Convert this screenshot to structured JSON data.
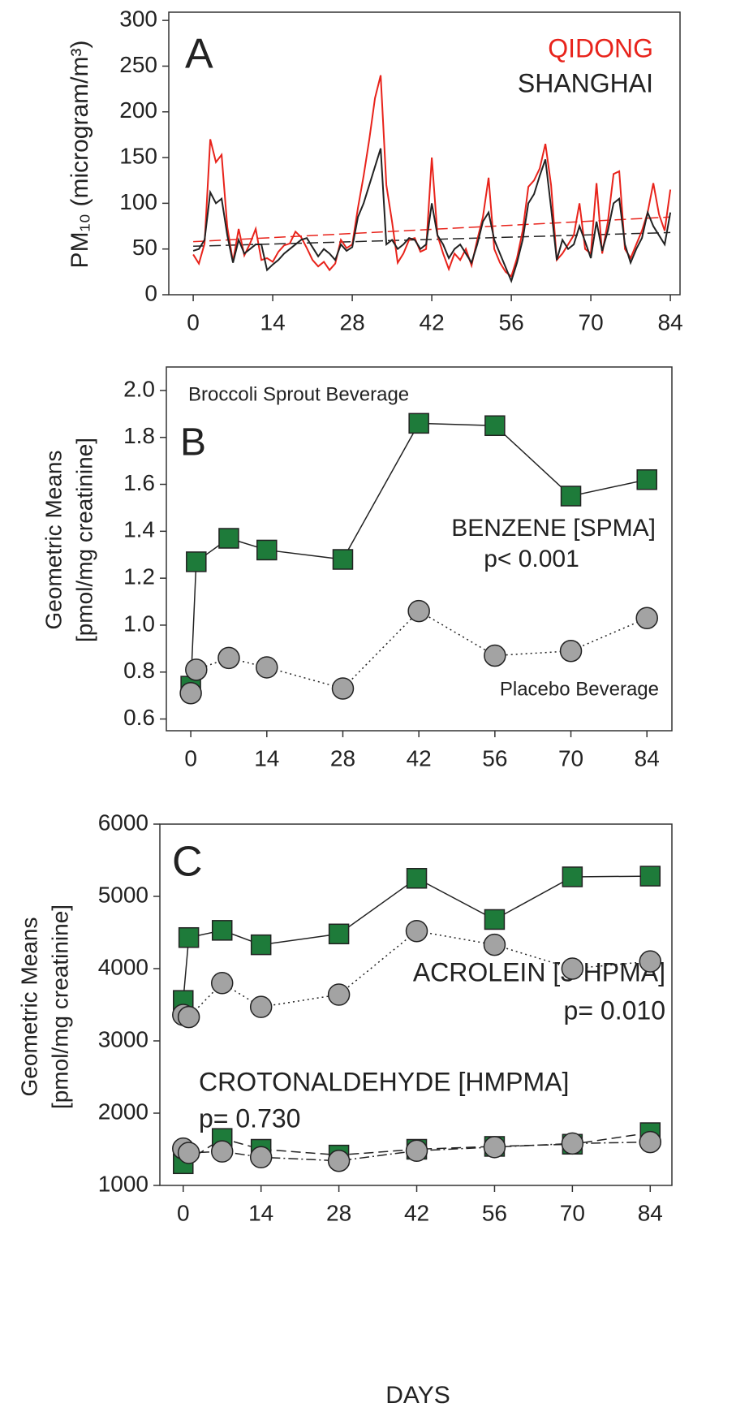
{
  "chart_data": [
    {
      "type": "line",
      "panel_label": "A",
      "ylabel": "PM₁₀ (microgram/m³)",
      "xlim": [
        -4.3,
        85.7
      ],
      "ylim": [
        0,
        309
      ],
      "xticks": [
        0,
        14,
        28,
        42,
        56,
        70,
        84
      ],
      "yticks": [
        0,
        50,
        100,
        150,
        200,
        250,
        300
      ],
      "series": [
        {
          "name": "QIDONG",
          "color": "#e8231b",
          "line": "solid",
          "x": [
            0,
            1,
            2,
            3,
            4,
            5,
            6,
            7,
            8,
            9,
            10,
            11,
            12,
            13,
            14,
            15,
            16,
            17,
            18,
            19,
            20,
            21,
            22,
            23,
            24,
            25,
            26,
            27,
            28,
            29,
            30,
            31,
            32,
            33,
            34,
            35,
            36,
            37,
            38,
            39,
            40,
            41,
            42,
            43,
            44,
            45,
            46,
            47,
            48,
            49,
            50,
            51,
            52,
            53,
            54,
            55,
            56,
            57,
            58,
            59,
            60,
            61,
            62,
            63,
            64,
            65,
            66,
            67,
            68,
            69,
            70,
            71,
            72,
            73,
            74,
            75,
            76,
            77,
            78,
            79,
            80,
            81,
            82,
            83,
            84
          ],
          "values": [
            44,
            34,
            56,
            170,
            145,
            153,
            74,
            36,
            72,
            43,
            56,
            72,
            38,
            40,
            36,
            47,
            54,
            56,
            69,
            63,
            51,
            38,
            31,
            36,
            27,
            34,
            60,
            51,
            55,
            95,
            130,
            170,
            215,
            240,
            120,
            80,
            35,
            45,
            60,
            62,
            47,
            50,
            150,
            65,
            45,
            28,
            45,
            38,
            50,
            32,
            60,
            85,
            128,
            50,
            35,
            25,
            20,
            40,
            70,
            118,
            125,
            138,
            165,
            120,
            38,
            45,
            55,
            65,
            100,
            50,
            45,
            122,
            45,
            80,
            132,
            135,
            50,
            40,
            55,
            70,
            90,
            122,
            88,
            70,
            115
          ],
          "trend": {
            "x": [
              0,
              84
            ],
            "values": [
              58,
              85
            ]
          }
        },
        {
          "name": "SHANGHAI",
          "color": "#222222",
          "line": "solid",
          "x": [
            0,
            1,
            2,
            3,
            4,
            5,
            6,
            7,
            8,
            9,
            10,
            11,
            12,
            13,
            14,
            15,
            16,
            17,
            18,
            19,
            20,
            21,
            22,
            23,
            24,
            25,
            26,
            27,
            28,
            29,
            30,
            31,
            32,
            33,
            34,
            35,
            36,
            37,
            38,
            39,
            40,
            41,
            42,
            43,
            44,
            45,
            46,
            47,
            48,
            49,
            50,
            51,
            52,
            53,
            54,
            55,
            56,
            57,
            58,
            59,
            60,
            61,
            62,
            63,
            64,
            65,
            66,
            67,
            68,
            69,
            70,
            71,
            72,
            73,
            74,
            75,
            76,
            77,
            78,
            79,
            80,
            81,
            82,
            83,
            84
          ],
          "values": [
            48,
            50,
            60,
            112,
            100,
            105,
            65,
            35,
            60,
            45,
            50,
            55,
            55,
            27,
            33,
            38,
            45,
            50,
            55,
            60,
            62,
            52,
            42,
            50,
            45,
            38,
            55,
            48,
            52,
            85,
            100,
            120,
            140,
            160,
            55,
            60,
            50,
            55,
            62,
            60,
            50,
            55,
            100,
            65,
            55,
            40,
            50,
            55,
            45,
            35,
            55,
            80,
            90,
            60,
            45,
            30,
            15,
            35,
            60,
            100,
            110,
            130,
            148,
            95,
            38,
            60,
            50,
            55,
            75,
            58,
            40,
            80,
            48,
            70,
            100,
            105,
            55,
            35,
            50,
            62,
            90,
            75,
            65,
            55,
            90
          ],
          "trend": {
            "x": [
              0,
              84
            ],
            "values": [
              53,
              68
            ]
          }
        }
      ]
    },
    {
      "type": "line",
      "panel_label": "B",
      "ylabel": [
        "Geometric Means",
        "[pmol/mg creatinine]"
      ],
      "xlim": [
        -4.5,
        88.6
      ],
      "ylim": [
        0.55,
        2.1
      ],
      "xticks": [
        0,
        14,
        28,
        42,
        56,
        70,
        84
      ],
      "yticks": [
        0.6,
        0.8,
        {
          "value": 1,
          "label": "1.0"
        },
        1.2,
        1.4,
        1.6,
        1.8,
        {
          "value": 2,
          "label": "2.0"
        }
      ],
      "annotations": [
        "BENZENE [SPMA]",
        "p< 0.001"
      ],
      "series": [
        {
          "name": "Broccoli Sprout Beverage",
          "color": "#1e7b3a",
          "marker": "square",
          "line": "solid",
          "x": [
            0,
            1,
            7,
            14,
            28,
            42,
            56,
            70,
            84
          ],
          "values": [
            0.74,
            1.27,
            1.37,
            1.32,
            1.28,
            1.86,
            1.85,
            1.55,
            1.62
          ]
        },
        {
          "name": "Placebo Beverage",
          "color": "#a3a3a3",
          "marker": "circle",
          "line": "dotted",
          "x": [
            0,
            1,
            7,
            14,
            28,
            42,
            56,
            70,
            84
          ],
          "values": [
            0.71,
            0.81,
            0.86,
            0.82,
            0.73,
            1.06,
            0.87,
            0.89,
            1.03
          ]
        }
      ]
    },
    {
      "type": "line",
      "panel_label": "C",
      "ylabel": [
        "Geometric Means",
        "[pmol/mg creatinine]"
      ],
      "xlabel": "DAYS",
      "xlim": [
        -4.2,
        87.9
      ],
      "ylim": [
        1000,
        6000
      ],
      "xticks": [
        0,
        14,
        28,
        42,
        56,
        70,
        84
      ],
      "yticks": [
        1000,
        2000,
        3000,
        4000,
        5000,
        6000
      ],
      "annotations": [
        "ACROLEIN [3-HPMA]",
        "p= 0.010",
        "CROTONALDEHYDE [HMPMA]",
        "p= 0.730"
      ],
      "series": [
        {
          "color": "#1e7b3a",
          "marker": "square",
          "line": "solid",
          "x": [
            0,
            1,
            7,
            14,
            28,
            42,
            56,
            70,
            84
          ],
          "values": [
            3560,
            4430,
            4530,
            4330,
            4480,
            5250,
            4680,
            5270,
            5280
          ]
        },
        {
          "color": "#a3a3a3",
          "marker": "circle",
          "line": "dotted",
          "x": [
            0,
            1,
            7,
            14,
            28,
            42,
            56,
            70,
            84
          ],
          "values": [
            3360,
            3330,
            3800,
            3470,
            3640,
            4520,
            4330,
            4000,
            4100
          ]
        },
        {
          "color": "#1e7b3a",
          "marker": "square",
          "line": "dashed",
          "x": [
            0,
            7,
            14,
            28,
            42,
            56,
            70,
            84
          ],
          "values": [
            1300,
            1650,
            1500,
            1420,
            1500,
            1540,
            1570,
            1730
          ]
        },
        {
          "color": "#a3a3a3",
          "marker": "circle",
          "line": "dashdot",
          "x": [
            0,
            1,
            7,
            14,
            28,
            42,
            56,
            70,
            84
          ],
          "values": [
            1510,
            1450,
            1470,
            1390,
            1340,
            1480,
            1530,
            1580,
            1600
          ]
        }
      ]
    }
  ]
}
